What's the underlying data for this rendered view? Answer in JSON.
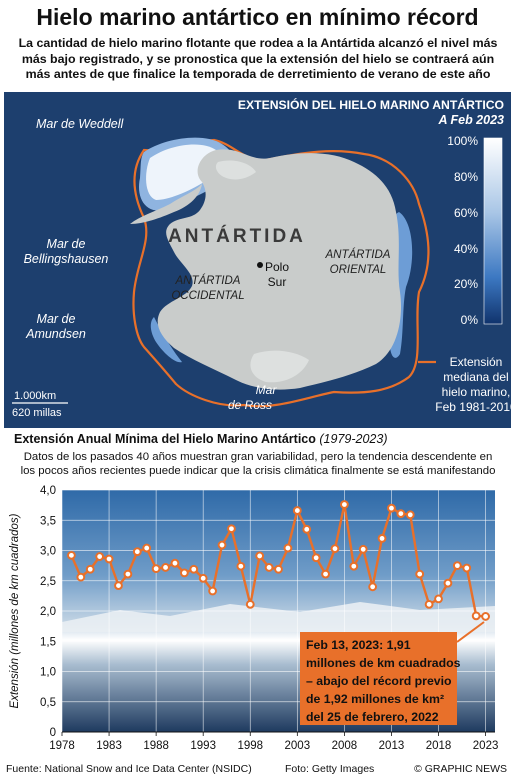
{
  "title": "Hielo marino antártico en mínimo récord",
  "subtitle": {
    "line1": "La cantidad de hielo marino flotante que rodea a la Antártida alcanzó el nivel más",
    "line2": "más bajo registrado, y se pronostica que la extensión del hielo se contraerá aún",
    "line3": "más antes de que finalice la temporada de derretimiento de verano de este año"
  },
  "map": {
    "heading": "EXTENSIÓN DEL HIELO MARINO ANTÁRTICO",
    "date": "A Feb 2023",
    "continent": "ANTÁRTIDA",
    "seas": {
      "weddell": "Mar de Weddell",
      "bellingshausen_1": "Mar de",
      "bellingshausen_2": "Bellingshausen",
      "amundsen_1": "Mar de",
      "amundsen_2": "Amundsen",
      "ross_1": "Mar",
      "ross_2": "de Ross"
    },
    "regions": {
      "occidental_1": "ANTÁRTIDA",
      "occidental_2": "OCCIDENTAL",
      "oriental_1": "ANTÁRTIDA",
      "oriental_2": "ORIENTAL"
    },
    "pole_1": "Polo",
    "pole_2": "Sur",
    "scale": {
      "km": "1.000km",
      "miles": "620 millas"
    },
    "colorbar_ticks": [
      "100%",
      "80%",
      "60%",
      "40%",
      "20%",
      "0%"
    ],
    "median_legend": [
      "Extensión",
      "mediana del",
      "hielo marino,",
      "Feb 1981-2010"
    ],
    "colors": {
      "ocean": "#1d3f6e",
      "land": "#c9cccb",
      "median_line": "#e8702a",
      "ice_full": "#ffffff",
      "ice_low": "#1c4f96"
    }
  },
  "chart_heading": {
    "title": "Extensión Anual Mínima del Hielo Marino Antártico",
    "period": "(1979-2023)"
  },
  "chart_description": {
    "line1": "Datos de los pasados 40 años muestran gran variabilidad, pero la tendencia descendente en",
    "line2": "los pocos años recientes puede indicar que la crisis climática finalmente se está manifestando"
  },
  "chart_data": {
    "type": "line",
    "ylabel": "Extensión (millones de km cuadrados)",
    "xlim": [
      1978,
      2024
    ],
    "ylim": [
      0,
      4.0
    ],
    "x_ticks": [
      "1978",
      "1983",
      "1988",
      "1993",
      "1998",
      "2003",
      "2008",
      "2013",
      "2018",
      "2023"
    ],
    "y_ticks": [
      "0",
      "0,5",
      "1,0",
      "1,5",
      "2,0",
      "2,5",
      "3,0",
      "3,5",
      "4,0"
    ],
    "grid": true,
    "line_color": "#e8702a",
    "series": [
      {
        "x": [
          1979,
          1980,
          1981,
          1982,
          1983,
          1984,
          1985,
          1986,
          1987,
          1988,
          1989,
          1990,
          1991,
          1992,
          1993,
          1994,
          1995,
          1996,
          1997,
          1998,
          1999,
          2000,
          2001,
          2002,
          2003,
          2004,
          2005,
          2006,
          2007,
          2008,
          2009,
          2010,
          2011,
          2012,
          2013,
          2014,
          2015,
          2016,
          2017,
          2018,
          2019,
          2020,
          2021,
          2022,
          2023
        ],
        "y": [
          2.92,
          2.56,
          2.69,
          2.9,
          2.86,
          2.42,
          2.61,
          2.98,
          3.04,
          2.7,
          2.72,
          2.79,
          2.63,
          2.69,
          2.54,
          2.33,
          3.09,
          3.36,
          2.74,
          2.11,
          2.91,
          2.72,
          2.69,
          3.04,
          3.66,
          3.35,
          2.88,
          2.61,
          3.03,
          3.76,
          2.74,
          3.02,
          2.4,
          3.2,
          3.7,
          3.61,
          3.59,
          2.61,
          2.11,
          2.2,
          2.46,
          2.75,
          2.71,
          1.92,
          1.91
        ]
      }
    ],
    "annotation": {
      "line1": "Feb 13, 2023: 1,91",
      "line2": "millones de km cuadrados",
      "line3": "– abajo del récord previo",
      "line4": "de 1,92 millones de km²",
      "line5": "del 25 de febrero, 2022"
    }
  },
  "footer": {
    "source": "Fuente: National Snow and Ice Data Center (NSIDC)",
    "photo": "Foto: Getty Images",
    "brand": "© GRAPHIC NEWS"
  }
}
